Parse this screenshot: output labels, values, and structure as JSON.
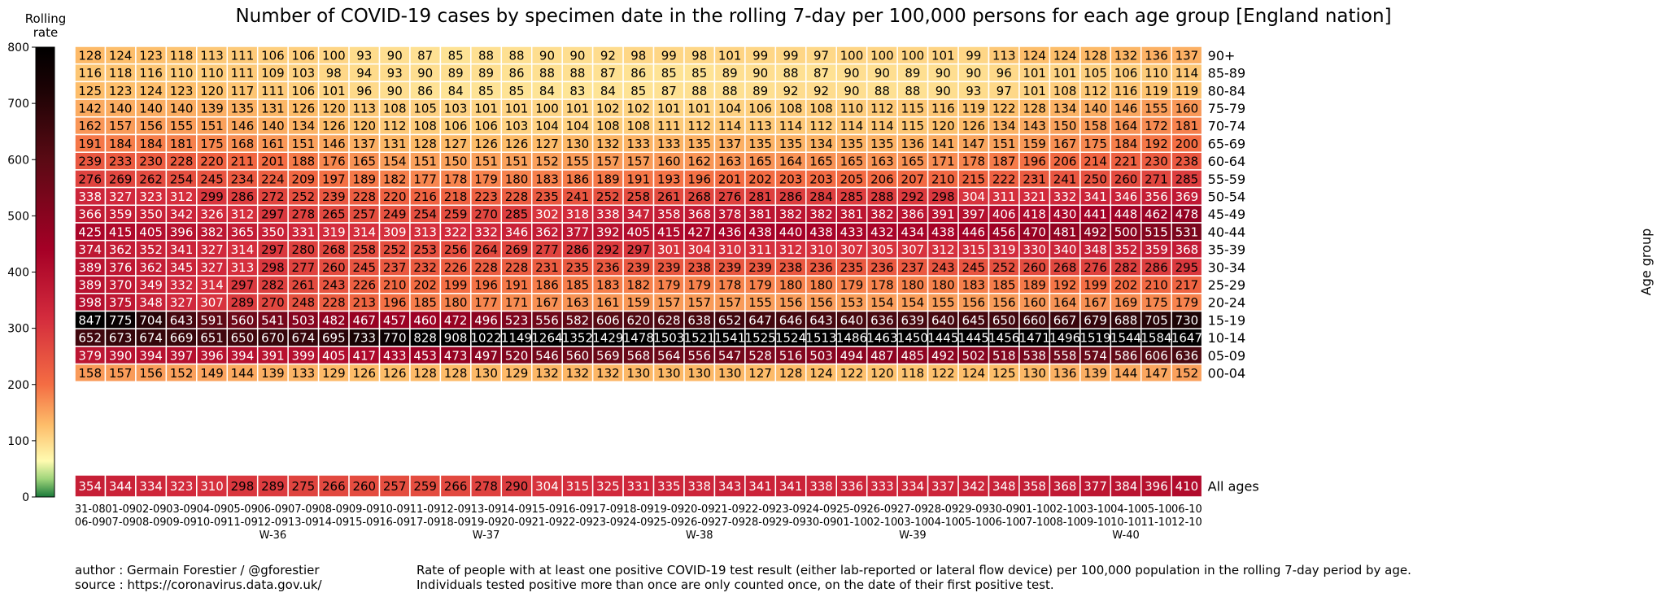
{
  "chart_data": {
    "type": "heatmap",
    "title": "Number of COVID-19 cases by specimen date in the rolling 7-day per 100,000 persons for each age group [England nation]",
    "ylabel": "Age group",
    "colorbar": {
      "label_line1": "Rolling",
      "label_line2": "rate",
      "range": [
        0,
        800
      ],
      "ticks": [
        "0",
        "100",
        "200",
        "300",
        "400",
        "500",
        "600",
        "700",
        "800"
      ],
      "colormap": "green-yellow-orange-red-black"
    },
    "rows": [
      "90+",
      "85-89",
      "80-84",
      "75-79",
      "70-74",
      "65-69",
      "60-64",
      "55-59",
      "50-54",
      "45-49",
      "40-44",
      "35-39",
      "30-34",
      "25-29",
      "20-24",
      "15-19",
      "10-14",
      "05-09",
      "00-04"
    ],
    "columns": [
      [
        "31-08",
        "06-09"
      ],
      [
        "01-09",
        "07-09"
      ],
      [
        "02-09",
        "08-09"
      ],
      [
        "03-09",
        "09-09"
      ],
      [
        "04-09",
        "10-09"
      ],
      [
        "05-09",
        "11-09"
      ],
      [
        "06-09",
        "12-09",
        "W-36"
      ],
      [
        "07-09",
        "13-09"
      ],
      [
        "08-09",
        "14-09"
      ],
      [
        "09-09",
        "15-09"
      ],
      [
        "10-09",
        "16-09"
      ],
      [
        "11-09",
        "17-09"
      ],
      [
        "12-09",
        "18-09"
      ],
      [
        "13-09",
        "19-09",
        "W-37"
      ],
      [
        "14-09",
        "20-09"
      ],
      [
        "15-09",
        "21-09"
      ],
      [
        "16-09",
        "22-09"
      ],
      [
        "17-09",
        "23-09"
      ],
      [
        "18-09",
        "24-09"
      ],
      [
        "19-09",
        "25-09"
      ],
      [
        "20-09",
        "26-09",
        "W-38"
      ],
      [
        "21-09",
        "27-09"
      ],
      [
        "22-09",
        "28-09"
      ],
      [
        "23-09",
        "29-09"
      ],
      [
        "24-09",
        "30-09"
      ],
      [
        "25-09",
        "01-10"
      ],
      [
        "26-09",
        "02-10"
      ],
      [
        "27-09",
        "03-10",
        "W-39"
      ],
      [
        "28-09",
        "04-10"
      ],
      [
        "29-09",
        "05-10"
      ],
      [
        "30-09",
        "06-10"
      ],
      [
        "01-10",
        "07-10"
      ],
      [
        "02-10",
        "08-10"
      ],
      [
        "03-10",
        "09-10"
      ],
      [
        "04-10",
        "10-10",
        "W-40"
      ],
      [
        "05-10",
        "11-10"
      ],
      [
        "06-10",
        "12-10"
      ]
    ],
    "values": [
      [
        128,
        124,
        123,
        118,
        113,
        111,
        106,
        106,
        100,
        93,
        90,
        87,
        85,
        88,
        88,
        90,
        90,
        92,
        98,
        99,
        98,
        101,
        99,
        99,
        97,
        100,
        100,
        100,
        101,
        99,
        113,
        124,
        124,
        128,
        132,
        136,
        137
      ],
      [
        116,
        118,
        116,
        110,
        110,
        111,
        109,
        103,
        98,
        94,
        93,
        90,
        89,
        89,
        86,
        88,
        88,
        87,
        86,
        85,
        85,
        89,
        90,
        88,
        87,
        90,
        90,
        89,
        90,
        90,
        96,
        101,
        101,
        105,
        106,
        110,
        114
      ],
      [
        125,
        123,
        124,
        123,
        120,
        117,
        111,
        106,
        101,
        96,
        90,
        86,
        84,
        85,
        85,
        84,
        83,
        84,
        85,
        87,
        88,
        88,
        89,
        92,
        92,
        90,
        88,
        88,
        90,
        93,
        97,
        101,
        108,
        112,
        116,
        119,
        119
      ],
      [
        142,
        140,
        140,
        140,
        139,
        135,
        131,
        126,
        120,
        113,
        108,
        105,
        103,
        101,
        101,
        100,
        101,
        102,
        102,
        101,
        101,
        104,
        106,
        108,
        108,
        110,
        112,
        115,
        116,
        119,
        122,
        128,
        134,
        140,
        146,
        155,
        160
      ],
      [
        162,
        157,
        156,
        155,
        151,
        146,
        140,
        134,
        126,
        120,
        112,
        108,
        106,
        106,
        103,
        104,
        104,
        108,
        108,
        111,
        112,
        114,
        113,
        114,
        112,
        114,
        114,
        115,
        120,
        126,
        134,
        143,
        150,
        158,
        164,
        172,
        181
      ],
      [
        191,
        184,
        184,
        181,
        175,
        168,
        161,
        151,
        146,
        137,
        131,
        128,
        127,
        126,
        126,
        127,
        130,
        132,
        133,
        133,
        135,
        137,
        135,
        135,
        134,
        135,
        135,
        136,
        141,
        147,
        151,
        159,
        167,
        175,
        184,
        192,
        200
      ],
      [
        239,
        233,
        230,
        228,
        220,
        211,
        201,
        188,
        176,
        165,
        154,
        151,
        150,
        151,
        151,
        152,
        155,
        157,
        157,
        160,
        162,
        163,
        165,
        164,
        165,
        165,
        163,
        165,
        171,
        178,
        187,
        196,
        206,
        214,
        221,
        230,
        238
      ],
      [
        276,
        269,
        262,
        254,
        245,
        234,
        224,
        209,
        197,
        189,
        182,
        177,
        178,
        179,
        180,
        183,
        186,
        189,
        191,
        193,
        196,
        201,
        202,
        203,
        203,
        205,
        206,
        207,
        210,
        215,
        222,
        231,
        241,
        250,
        260,
        271,
        285
      ],
      [
        338,
        327,
        323,
        312,
        299,
        286,
        272,
        252,
        239,
        228,
        220,
        216,
        218,
        223,
        228,
        235,
        241,
        252,
        258,
        261,
        268,
        276,
        281,
        286,
        284,
        285,
        288,
        292,
        298,
        304,
        311,
        321,
        332,
        341,
        346,
        356,
        369
      ],
      [
        366,
        359,
        350,
        342,
        326,
        312,
        297,
        278,
        265,
        257,
        249,
        254,
        259,
        270,
        285,
        302,
        318,
        338,
        347,
        358,
        368,
        378,
        381,
        382,
        382,
        381,
        382,
        386,
        391,
        397,
        406,
        418,
        430,
        441,
        448,
        462,
        478
      ],
      [
        425,
        415,
        405,
        396,
        382,
        365,
        350,
        331,
        319,
        314,
        309,
        313,
        322,
        332,
        346,
        362,
        377,
        392,
        405,
        415,
        427,
        436,
        438,
        440,
        438,
        433,
        432,
        434,
        438,
        446,
        456,
        470,
        481,
        492,
        500,
        515,
        531
      ],
      [
        374,
        362,
        352,
        341,
        327,
        314,
        297,
        280,
        268,
        258,
        252,
        253,
        256,
        264,
        269,
        277,
        286,
        292,
        297,
        301,
        304,
        310,
        311,
        312,
        310,
        307,
        305,
        307,
        312,
        315,
        319,
        330,
        340,
        348,
        352,
        359,
        368
      ],
      [
        389,
        376,
        362,
        345,
        327,
        313,
        298,
        277,
        260,
        245,
        237,
        232,
        226,
        228,
        228,
        231,
        235,
        236,
        239,
        239,
        238,
        239,
        239,
        238,
        236,
        235,
        236,
        237,
        243,
        245,
        252,
        260,
        268,
        276,
        282,
        286,
        295
      ],
      [
        389,
        370,
        349,
        332,
        314,
        297,
        282,
        261,
        243,
        226,
        210,
        202,
        199,
        196,
        191,
        186,
        185,
        183,
        182,
        179,
        179,
        178,
        179,
        180,
        180,
        179,
        178,
        180,
        180,
        183,
        185,
        189,
        192,
        199,
        202,
        210,
        217
      ],
      [
        398,
        375,
        348,
        327,
        307,
        289,
        270,
        248,
        228,
        213,
        196,
        185,
        180,
        177,
        171,
        167,
        163,
        161,
        159,
        157,
        157,
        157,
        155,
        156,
        156,
        153,
        154,
        154,
        155,
        156,
        156,
        160,
        164,
        167,
        169,
        175,
        179
      ],
      [
        847,
        775,
        704,
        643,
        591,
        560,
        541,
        503,
        482,
        467,
        457,
        460,
        472,
        496,
        523,
        556,
        582,
        606,
        620,
        628,
        638,
        652,
        647,
        646,
        643,
        640,
        636,
        639,
        640,
        645,
        650,
        660,
        667,
        679,
        688,
        705,
        730
      ],
      [
        652,
        673,
        674,
        669,
        651,
        650,
        670,
        674,
        695,
        733,
        770,
        828,
        908,
        1022,
        1149,
        1264,
        1352,
        1429,
        1478,
        1503,
        1521,
        1541,
        1525,
        1524,
        1513,
        1486,
        1463,
        1450,
        1445,
        1445,
        1456,
        1471,
        1496,
        1519,
        1544,
        1584,
        1647
      ],
      [
        379,
        390,
        394,
        397,
        396,
        394,
        391,
        399,
        405,
        417,
        433,
        453,
        473,
        497,
        520,
        546,
        560,
        569,
        568,
        564,
        556,
        547,
        528,
        516,
        503,
        494,
        487,
        485,
        492,
        502,
        518,
        538,
        558,
        574,
        586,
        606,
        636
      ],
      [
        158,
        157,
        156,
        152,
        149,
        144,
        139,
        133,
        129,
        126,
        126,
        128,
        128,
        130,
        129,
        132,
        132,
        132,
        130,
        130,
        130,
        130,
        127,
        128,
        124,
        122,
        120,
        118,
        122,
        124,
        125,
        130,
        136,
        139,
        144,
        147,
        152
      ]
    ],
    "all_ages": {
      "label": "All ages",
      "values": [
        354,
        344,
        334,
        323,
        310,
        298,
        289,
        275,
        266,
        260,
        257,
        259,
        266,
        278,
        290,
        304,
        315,
        325,
        331,
        335,
        338,
        343,
        341,
        341,
        338,
        336,
        333,
        334,
        337,
        342,
        348,
        358,
        368,
        377,
        384,
        396,
        410
      ]
    }
  },
  "footer": {
    "author": "author : Germain Forestier / @gforestier",
    "source": "source : https://coronavirus.data.gov.uk/",
    "note_line1": "Rate of people with at least one positive COVID-19 test result (either lab-reported or lateral flow device) per 100,000 population in the rolling 7-day period by age.",
    "note_line2": "Individuals tested positive more than once are only counted once, on the date of their first positive test."
  }
}
